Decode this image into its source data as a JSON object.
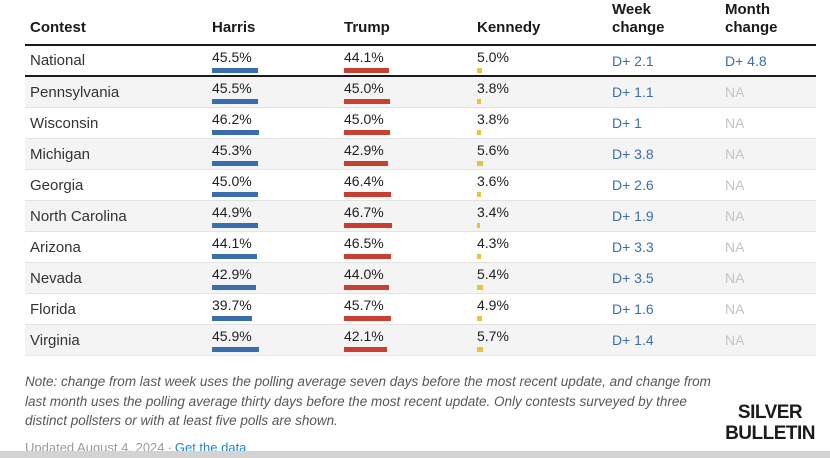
{
  "chart_data": {
    "type": "table",
    "columns": [
      "Contest",
      "Harris",
      "Trump",
      "Kennedy",
      "Week\nchange",
      "Month\nchange"
    ],
    "rows": [
      {
        "contest": "National",
        "harris": 45.5,
        "trump": 44.1,
        "kennedy": 5.0,
        "week_change": "D+ 2.1",
        "month_change": "D+ 4.8"
      },
      {
        "contest": "Pennsylvania",
        "harris": 45.5,
        "trump": 45.0,
        "kennedy": 3.8,
        "week_change": "D+ 1.1",
        "month_change": "NA"
      },
      {
        "contest": "Wisconsin",
        "harris": 46.2,
        "trump": 45.0,
        "kennedy": 3.8,
        "week_change": "D+ 1",
        "month_change": "NA"
      },
      {
        "contest": "Michigan",
        "harris": 45.3,
        "trump": 42.9,
        "kennedy": 5.6,
        "week_change": "D+ 3.8",
        "month_change": "NA"
      },
      {
        "contest": "Georgia",
        "harris": 45.0,
        "trump": 46.4,
        "kennedy": 3.6,
        "week_change": "D+ 2.6",
        "month_change": "NA"
      },
      {
        "contest": "North Carolina",
        "harris": 44.9,
        "trump": 46.7,
        "kennedy": 3.4,
        "week_change": "D+ 1.9",
        "month_change": "NA"
      },
      {
        "contest": "Arizona",
        "harris": 44.1,
        "trump": 46.5,
        "kennedy": 4.3,
        "week_change": "D+ 3.3",
        "month_change": "NA"
      },
      {
        "contest": "Nevada",
        "harris": 42.9,
        "trump": 44.0,
        "kennedy": 5.4,
        "week_change": "D+ 3.5",
        "month_change": "NA"
      },
      {
        "contest": "Florida",
        "harris": 39.7,
        "trump": 45.7,
        "kennedy": 4.9,
        "week_change": "D+ 1.6",
        "month_change": "NA"
      },
      {
        "contest": "Virginia",
        "harris": 45.9,
        "trump": 42.1,
        "kennedy": 5.7,
        "week_change": "D+ 1.4",
        "month_change": "NA"
      }
    ]
  },
  "colors": {
    "harris": "#3a6cb0",
    "trump": "#c74030",
    "kennedy": "#eac33e",
    "change_text": "#3c6ea9",
    "na_text": "#c4c4c4"
  },
  "footer": {
    "note": "Note: change from last week uses the polling average seven days before the most recent update, and change from last month uses the polling average thirty days before the most recent update. Only contests surveyed by three distinct pollsters or with at least five polls are shown.",
    "updated": "Updated August 4, 2024",
    "separator": "·",
    "link": "Get the data"
  },
  "logo": {
    "line1": "SILVER",
    "line2": "BULLETIN"
  }
}
